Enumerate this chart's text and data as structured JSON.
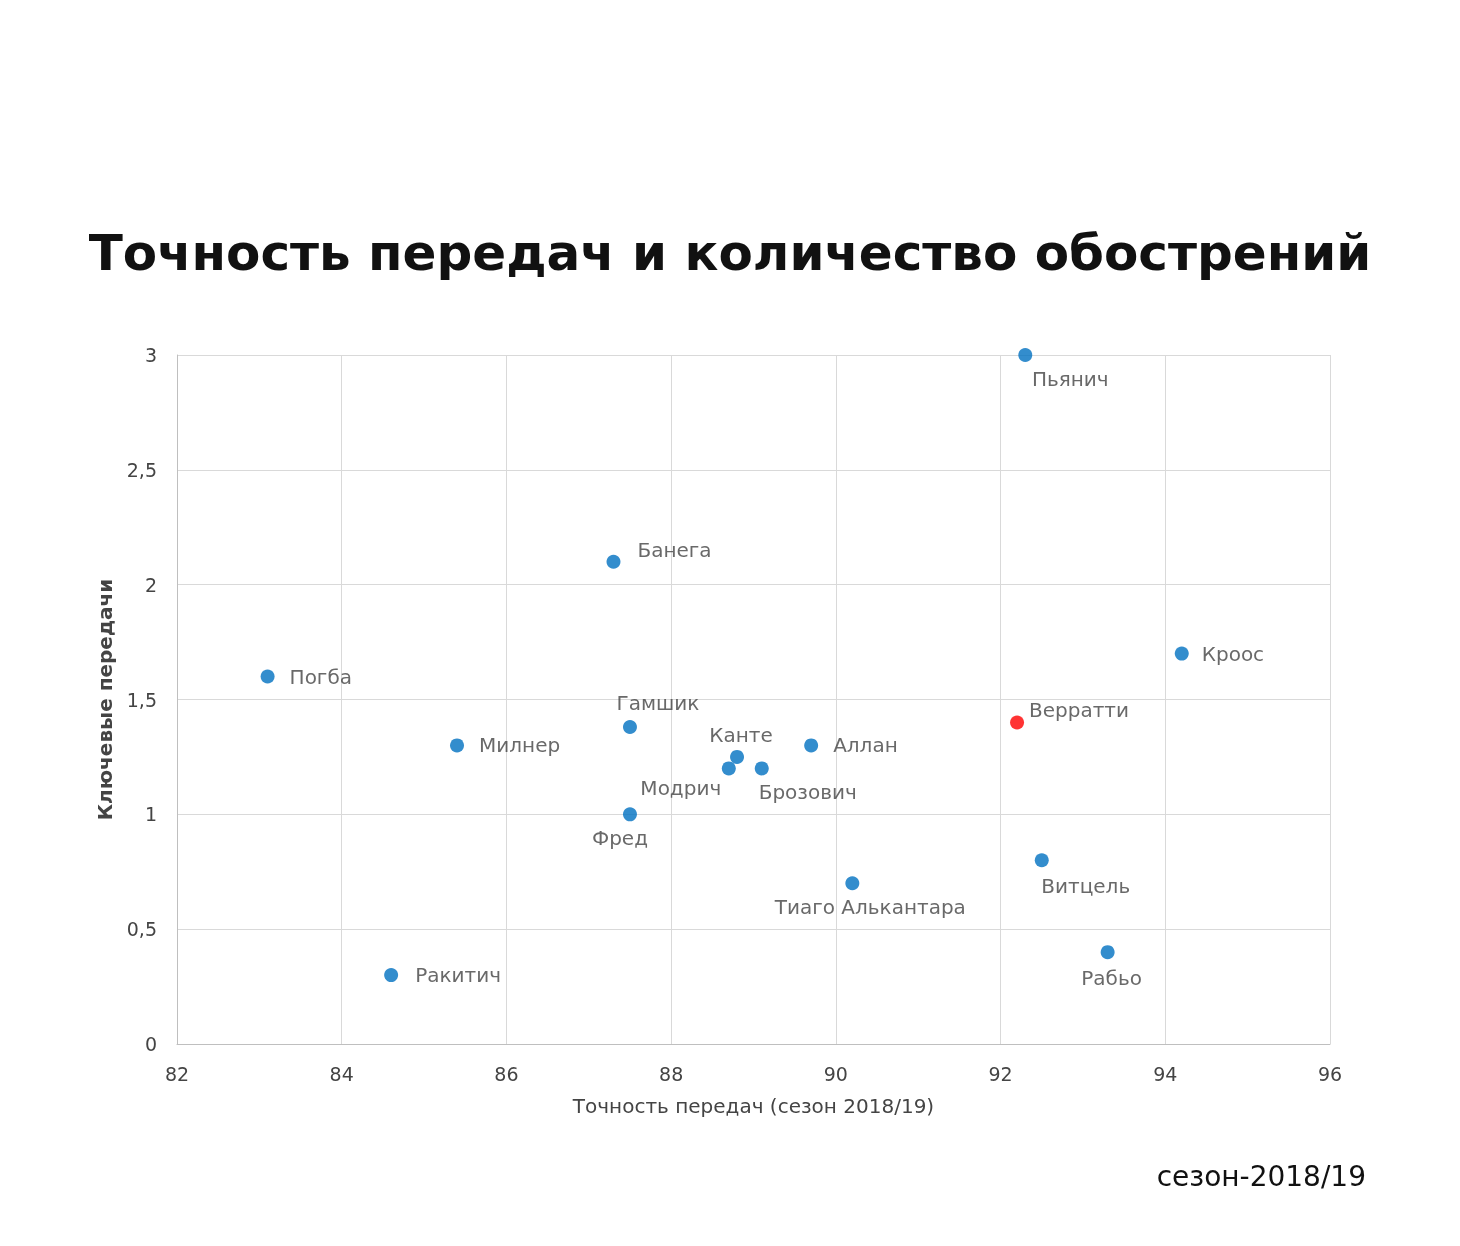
{
  "chart_data": {
    "type": "scatter",
    "title": "Точность передач и количество обострений",
    "xlabel": "Точность передач (сезон 2018/19)",
    "ylabel": "Ключевые передачи",
    "annotations": [
      "сезон-2018/19"
    ],
    "xlim": [
      82,
      96
    ],
    "xticks": [
      82,
      84,
      86,
      88,
      90,
      92,
      94,
      96
    ],
    "ylim": [
      0,
      3
    ],
    "yticks": [
      0,
      {
        "value": 0.5,
        "label": "0,5"
      },
      1,
      {
        "value": 1.5,
        "label": "1,5"
      },
      2,
      {
        "value": 2.5,
        "label": "2,5"
      },
      3
    ],
    "grid": true,
    "legend": false,
    "marker": "circle",
    "series": [
      {
        "name": "Пьянич",
        "color": "#0070c0",
        "x": [
          92.3
        ],
        "values": [
          3
        ]
      },
      {
        "name": "Банега",
        "color": "#0070c0",
        "x": [
          87.3
        ],
        "values": [
          2.1
        ]
      },
      {
        "name": "Кроос",
        "color": "#0070c0",
        "x": [
          94.2
        ],
        "values": [
          1.7
        ]
      },
      {
        "name": "Погба",
        "color": "#0070c0",
        "x": [
          83.1
        ],
        "values": [
          1.6
        ]
      },
      {
        "name": "Верратти",
        "color": "#ff0000",
        "x": [
          92.2
        ],
        "values": [
          1.4
        ]
      },
      {
        "name": "Гамшик",
        "color": "#0070c0",
        "x": [
          87.5
        ],
        "values": [
          1.38
        ]
      },
      {
        "name": "Милнер",
        "color": "#0070c0",
        "x": [
          85.4
        ],
        "values": [
          1.3
        ]
      },
      {
        "name": "Канте",
        "color": "#0070c0",
        "x": [
          88.8
        ],
        "values": [
          1.25
        ]
      },
      {
        "name": "Модрич",
        "color": "#0070c0",
        "x": [
          88.7
        ],
        "values": [
          1.2
        ]
      },
      {
        "name": "Брозович",
        "color": "#0070c0",
        "x": [
          89.1
        ],
        "values": [
          1.2
        ]
      },
      {
        "name": "Аллан",
        "color": "#0070c0",
        "x": [
          89.7
        ],
        "values": [
          1.3
        ]
      },
      {
        "name": "Фред",
        "color": "#0070c0",
        "x": [
          87.5
        ],
        "values": [
          1
        ]
      },
      {
        "name": "Тиаго Алькантара",
        "color": "#0070c0",
        "x": [
          90.2
        ],
        "values": [
          0.7
        ]
      },
      {
        "name": "Витцель",
        "color": "#0070c0",
        "x": [
          92.5
        ],
        "values": [
          0.8
        ]
      },
      {
        "name": "Рабьо",
        "color": "#0070c0",
        "x": [
          93.3
        ],
        "values": [
          0.4
        ]
      },
      {
        "name": "Ракитич",
        "color": "#0070c0",
        "x": [
          84.6
        ],
        "values": [
          0.3
        ]
      }
    ]
  }
}
